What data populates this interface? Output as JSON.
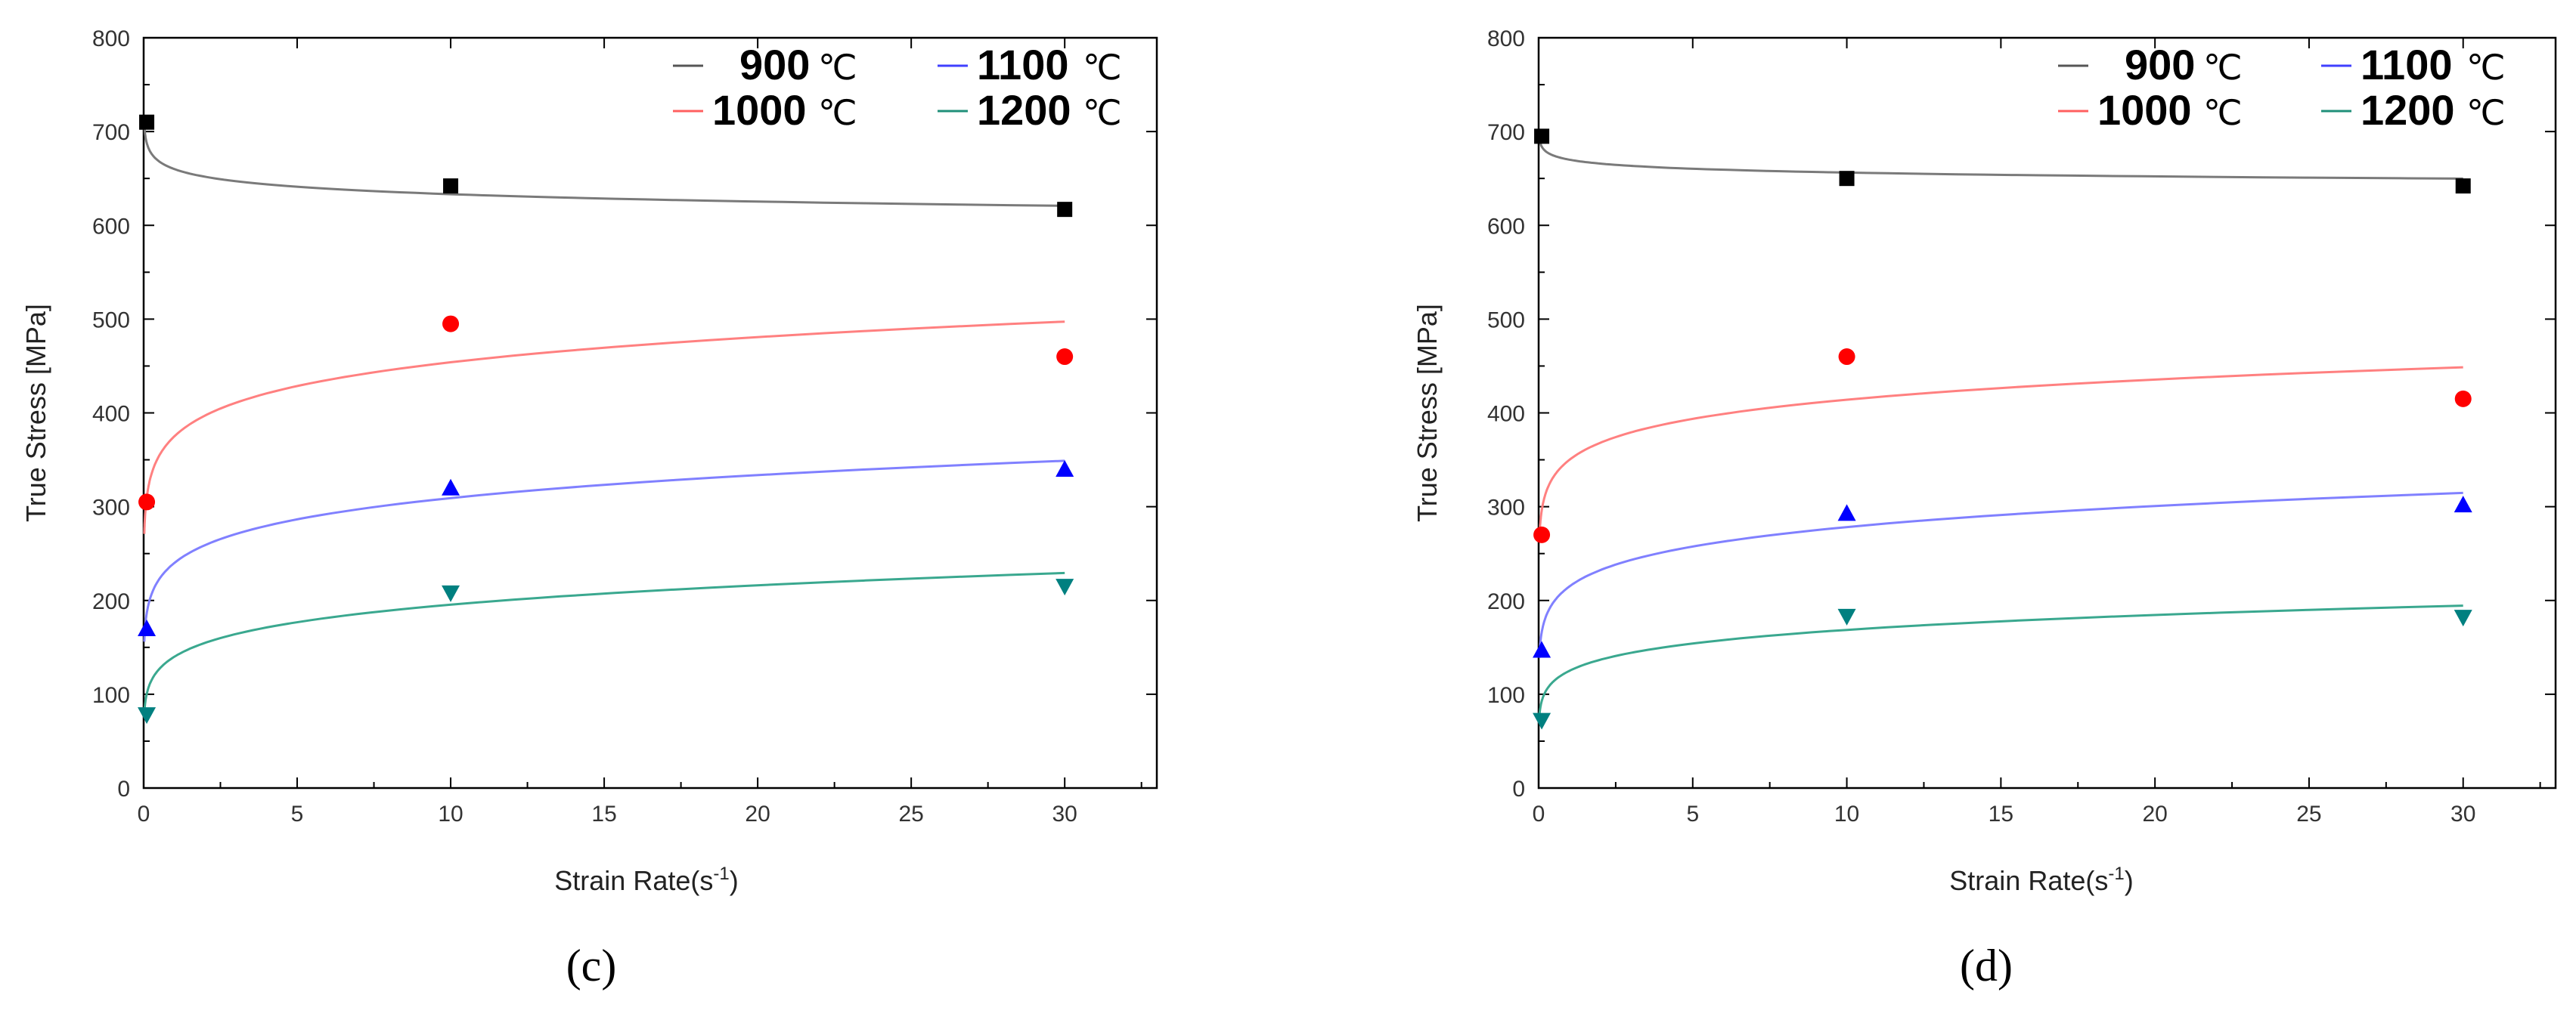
{
  "chart_data": [
    {
      "type": "scatter",
      "panel_label": "(c)",
      "xlabel": "Strain Rate(s",
      "xlabel_sup": "-1",
      "xlabel_end": ")",
      "ylabel": "True Stress [MPa]",
      "xlim": [
        0,
        33
      ],
      "ylim": [
        0,
        800
      ],
      "xticks": [
        "0",
        "5",
        "10",
        "15",
        "20",
        "25",
        "30"
      ],
      "yticks": [
        "0",
        "100",
        "200",
        "300",
        "400",
        "500",
        "600",
        "700",
        "800"
      ],
      "legend_position": "top-right",
      "series": [
        {
          "name": "900",
          "unit": "℃",
          "color": "#000000",
          "marker": "square",
          "x": [
            0.1,
            10,
            30
          ],
          "y": [
            710,
            642,
            617
          ],
          "fit": {
            "a": 660,
            "n": -0.018
          }
        },
        {
          "name": "1000",
          "unit": "℃",
          "color": "#ff0000",
          "marker": "circle",
          "x": [
            0.1,
            10,
            30
          ],
          "y": [
            305,
            495,
            460
          ],
          "fit": {
            "a": 375,
            "n": 0.083
          }
        },
        {
          "name": "1100",
          "unit": "℃",
          "color": "#0000ff",
          "marker": "triangle-up",
          "x": [
            0.1,
            10,
            30
          ],
          "y": [
            170,
            320,
            340
          ],
          "fit": {
            "a": 240,
            "n": 0.11
          }
        },
        {
          "name": "1200",
          "unit": "℃",
          "color": "#008080",
          "marker": "triangle-down",
          "x": [
            0.1,
            10,
            30
          ],
          "y": [
            78,
            208,
            215
          ],
          "fit": {
            "a": 140,
            "n": 0.145
          }
        }
      ]
    },
    {
      "type": "scatter",
      "panel_label": "(d)",
      "xlabel": "Strain Rate(s",
      "xlabel_sup": "-1",
      "xlabel_end": ")",
      "ylabel": "True Stress [MPa]",
      "xlim": [
        0,
        33
      ],
      "ylim": [
        0,
        800
      ],
      "xticks": [
        "0",
        "5",
        "10",
        "15",
        "20",
        "25",
        "30"
      ],
      "yticks": [
        "0",
        "100",
        "200",
        "300",
        "400",
        "500",
        "600",
        "700",
        "800"
      ],
      "legend_position": "top-right",
      "series": [
        {
          "name": "900",
          "unit": "℃",
          "color": "#000000",
          "marker": "square",
          "x": [
            0.1,
            10,
            30
          ],
          "y": [
            695,
            650,
            642
          ],
          "fit": {
            "a": 670,
            "n": -0.009
          }
        },
        {
          "name": "1000",
          "unit": "℃",
          "color": "#ff0000",
          "marker": "circle",
          "x": [
            0.1,
            10,
            30
          ],
          "y": [
            270,
            460,
            415
          ],
          "fit": {
            "a": 350,
            "n": 0.073
          }
        },
        {
          "name": "1100",
          "unit": "℃",
          "color": "#0000ff",
          "marker": "triangle-up",
          "x": [
            0.1,
            10,
            30
          ],
          "y": [
            147,
            293,
            302
          ],
          "fit": {
            "a": 215,
            "n": 0.112
          }
        },
        {
          "name": "1200",
          "unit": "℃",
          "color": "#008080",
          "marker": "triangle-down",
          "x": [
            0.1,
            10,
            30
          ],
          "y": [
            72,
            183,
            182
          ],
          "fit": {
            "a": 125,
            "n": 0.13
          }
        }
      ]
    }
  ]
}
